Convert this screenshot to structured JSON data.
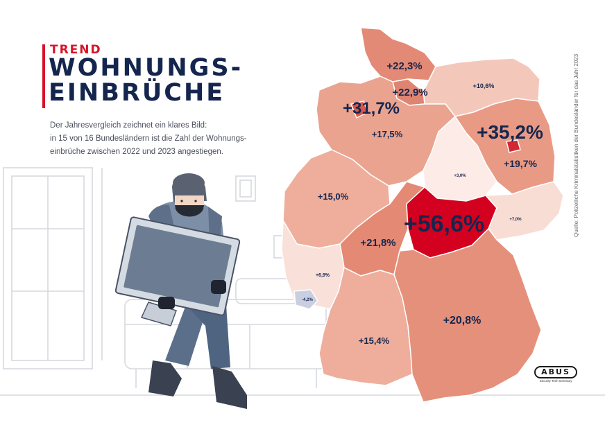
{
  "header": {
    "kicker": "TREND",
    "title_line1": "WOHNUNGS-",
    "title_line2": "EINBRÜCHE"
  },
  "intro": {
    "line1": "Der Jahresvergleich zeichnet ein klares Bild:",
    "line2": "in 15 von 16 Bundesländern ist die Zahl der Wohnungs-",
    "line3": "einbrüche zwischen 2022 und 2023 angestiegen."
  },
  "map": {
    "value_color": "#15264e",
    "states": [
      {
        "id": "schleswig-holstein",
        "value": "+22,3%",
        "fill": "#e38a76"
      },
      {
        "id": "hamburg",
        "value": "+22,9%",
        "fill": "#e08472"
      },
      {
        "id": "bremen",
        "value": "+31,7%",
        "fill": "#d9574b"
      },
      {
        "id": "niedersachsen",
        "value": "+17,5%",
        "fill": "#eaa38f"
      },
      {
        "id": "mecklenburg-vorpommern",
        "value": "+10,6%",
        "fill": "#f3c8bb"
      },
      {
        "id": "berlin",
        "value": "+35,2%",
        "fill": "#d32733"
      },
      {
        "id": "brandenburg",
        "value": "+19,7%",
        "fill": "#e99a85"
      },
      {
        "id": "sachsen-anhalt",
        "value": "+3,0%",
        "fill": "#fcebe6"
      },
      {
        "id": "nordrhein-westfalen",
        "value": "+15,0%",
        "fill": "#eeae9b"
      },
      {
        "id": "hessen",
        "value": "+21,8%",
        "fill": "#e48a74"
      },
      {
        "id": "thueringen",
        "value": "+56,6%",
        "fill": "#d4001f"
      },
      {
        "id": "sachsen",
        "value": "+7,0%",
        "fill": "#f8ddd5"
      },
      {
        "id": "rheinland-pfalz",
        "value": "+6,9%",
        "fill": "#f9e0d9"
      },
      {
        "id": "saarland",
        "value": "-4,2%",
        "fill": "#c9cfe0"
      },
      {
        "id": "baden-wuerttemberg",
        "value": "+15,4%",
        "fill": "#eeae9b"
      },
      {
        "id": "bayern",
        "value": "+20,8%",
        "fill": "#e5907b"
      }
    ]
  },
  "source": "Quelle: Polizeiliche Kriminalstatistiken der Bundesländer für das Jahr 2023",
  "logo": {
    "text": "ABUS",
    "tagline": "Security Tech Germany"
  }
}
